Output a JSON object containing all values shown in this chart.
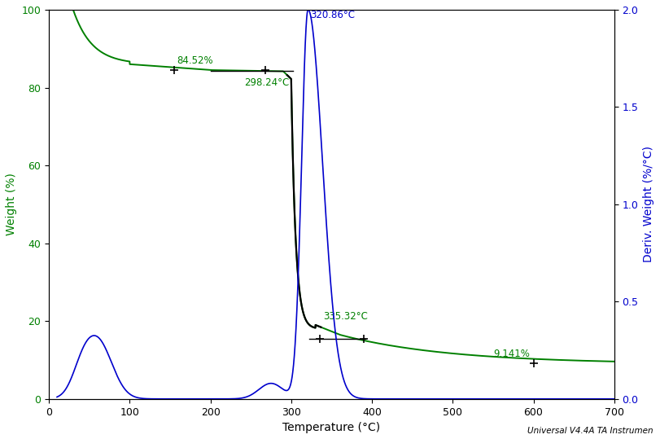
{
  "xlabel": "Temperature (°C)",
  "ylabel_left": "Weight (%)",
  "ylabel_right": "Deriv. Weight (%/°C)",
  "xlim": [
    0,
    700
  ],
  "ylim_left": [
    0,
    100
  ],
  "ylim_right": [
    0,
    2.0
  ],
  "xticks": [
    0,
    100,
    200,
    300,
    400,
    500,
    600,
    700
  ],
  "yticks_left": [
    0,
    20,
    40,
    60,
    80,
    100
  ],
  "yticks_right": [
    0.0,
    0.5,
    1.0,
    1.5,
    2.0
  ],
  "tga_color": "#008000",
  "dtg_color": "#0000cc",
  "bg_color": "#ffffff",
  "footer": "Universal V4.4A TA Instrumen"
}
